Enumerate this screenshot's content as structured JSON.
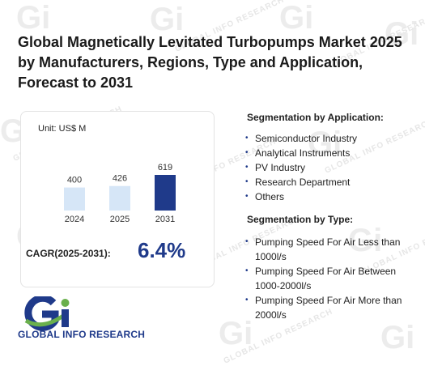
{
  "title": "Global Magnetically Levitated Turbopumps Market 2025 by Manufacturers, Regions, Type and Application, Forecast to 2031",
  "watermark_text": "GLOBAL INFO RESEARCH",
  "chart_data": {
    "type": "bar",
    "unit": "Unit: US$ M",
    "categories": [
      "2024",
      "2025",
      "2031"
    ],
    "values": [
      400,
      426,
      619
    ],
    "bar_colors": [
      "#d6e6f7",
      "#d6e6f7",
      "#1f3a8a"
    ]
  },
  "cagr": {
    "label": "CAGR(2025-2031):",
    "value": "6.4%"
  },
  "application": {
    "heading": "Segmentation by Application:",
    "items": [
      "Semiconductor Industry",
      "Analytical Instruments",
      "PV Industry",
      "Research Department",
      "Others"
    ]
  },
  "type": {
    "heading": "Segmentation by Type:",
    "items": [
      "Pumping Speed For Air Less than 1000l/s",
      "Pumping Speed For Air Between 1000-2000l/s",
      "Pumping Speed For Air More than 2000l/s"
    ]
  },
  "logo": {
    "text": "GLOBAL INFO RESEARCH",
    "colors": {
      "blue": "#1f3a8a",
      "green": "#6ab04c"
    }
  }
}
